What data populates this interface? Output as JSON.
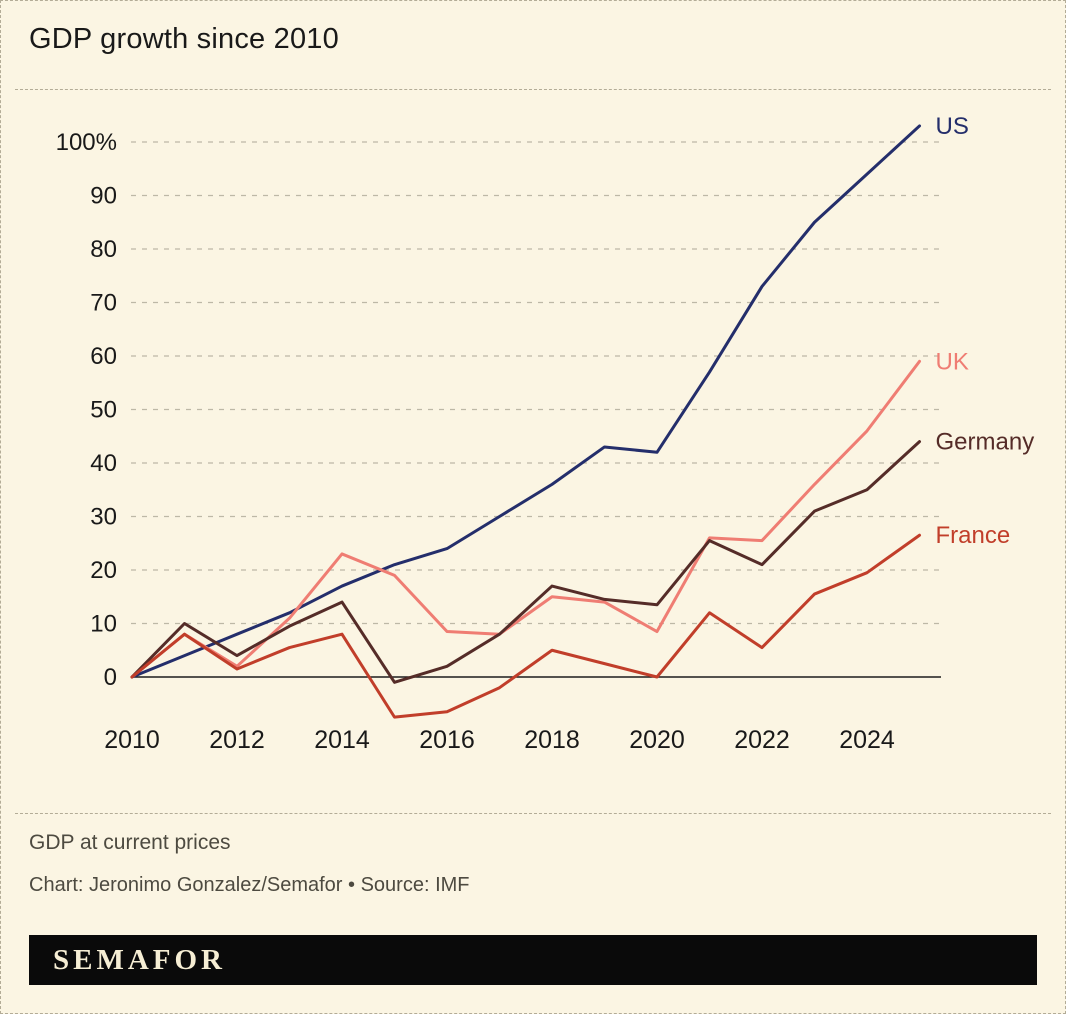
{
  "title": "GDP growth since 2010",
  "footer": {
    "note": "GDP at current prices",
    "credit": "Chart: Jeronimo Gonzalez/Semafor • Source: IMF",
    "logo": "SEMAFOR"
  },
  "colors": {
    "background": "#fbf5e3",
    "grid": "#bdb8a6",
    "axis": "#1c1c1c",
    "text": "#191919",
    "muted": "#4d4a40",
    "us": "#242e6b",
    "uk": "#ef7d73",
    "germany": "#552c28",
    "france": "#c13e2a"
  },
  "chart_data": {
    "type": "line",
    "title": "GDP growth since 2010",
    "x": [
      2010,
      2011,
      2012,
      2013,
      2014,
      2015,
      2016,
      2017,
      2018,
      2019,
      2020,
      2021,
      2022,
      2023,
      2024,
      2025
    ],
    "series": [
      {
        "name": "US",
        "color": "#242e6b",
        "values": [
          0,
          4,
          8,
          12,
          17,
          21,
          24,
          30,
          36,
          43,
          42,
          57,
          73,
          85,
          94,
          103
        ]
      },
      {
        "name": "UK",
        "color": "#ef7d73",
        "values": [
          0,
          8,
          2,
          11,
          23,
          19,
          8.5,
          8,
          15,
          14,
          8.5,
          26,
          25.5,
          36,
          46,
          59
        ]
      },
      {
        "name": "Germany",
        "color": "#552c28",
        "values": [
          0,
          10,
          4,
          9.5,
          14,
          -1,
          2,
          8,
          17,
          14.5,
          13.5,
          25.5,
          21,
          31,
          35,
          44
        ]
      },
      {
        "name": "France",
        "color": "#c13e2a",
        "values": [
          0,
          8,
          1.5,
          5.5,
          8,
          -7.5,
          -6.5,
          -2,
          5,
          2.5,
          0,
          12,
          5.5,
          15.5,
          19.5,
          26.5
        ]
      }
    ],
    "ylim": [
      -10,
      107
    ],
    "yticks": [
      0,
      10,
      20,
      30,
      40,
      50,
      60,
      70,
      80,
      90,
      100
    ],
    "ytick_labels": [
      "0",
      "10",
      "20",
      "30",
      "40",
      "50",
      "60",
      "70",
      "80",
      "90",
      "100%"
    ],
    "xtick_indices": [
      0,
      2,
      4,
      6,
      8,
      10,
      12,
      14
    ],
    "xtick_labels": [
      "2010",
      "2012",
      "2014",
      "2016",
      "2018",
      "2020",
      "2022",
      "2024"
    ],
    "grid": "horizontal-dashed",
    "legend_position": "line-end-labels"
  }
}
